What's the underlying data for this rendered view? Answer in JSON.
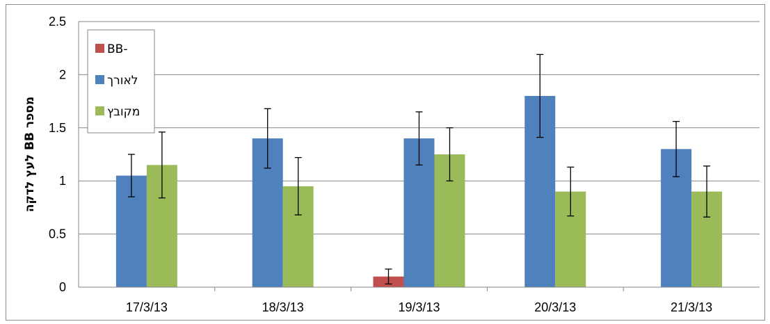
{
  "chart_data": {
    "type": "bar",
    "title": "",
    "xlabel": "",
    "ylabel": "מספר BB לעץ לדקה",
    "ylim": [
      0,
      2.5
    ],
    "yticks": [
      "0",
      "0.5",
      "1",
      "1.5",
      "2",
      "2.5"
    ],
    "grid": true,
    "legend_position": "top-left",
    "categories": [
      "17/3/13",
      "18/3/13",
      "19/3/13",
      "20/3/13",
      "21/3/13"
    ],
    "series": [
      {
        "name": "BB-",
        "color": "#c0504d",
        "values": [
          0,
          0,
          0.1,
          0,
          0
        ],
        "errors": [
          0,
          0,
          0.07,
          0,
          0
        ]
      },
      {
        "name": "לאורך",
        "color": "#4f81bd",
        "values": [
          1.05,
          1.4,
          1.4,
          1.8,
          1.3
        ],
        "errors": [
          0.2,
          0.28,
          0.25,
          0.39,
          0.26
        ]
      },
      {
        "name": "מקובץ",
        "color": "#9bbb59",
        "values": [
          1.15,
          0.95,
          1.25,
          0.9,
          0.9
        ],
        "errors": [
          0.31,
          0.27,
          0.25,
          0.23,
          0.24
        ]
      }
    ]
  }
}
